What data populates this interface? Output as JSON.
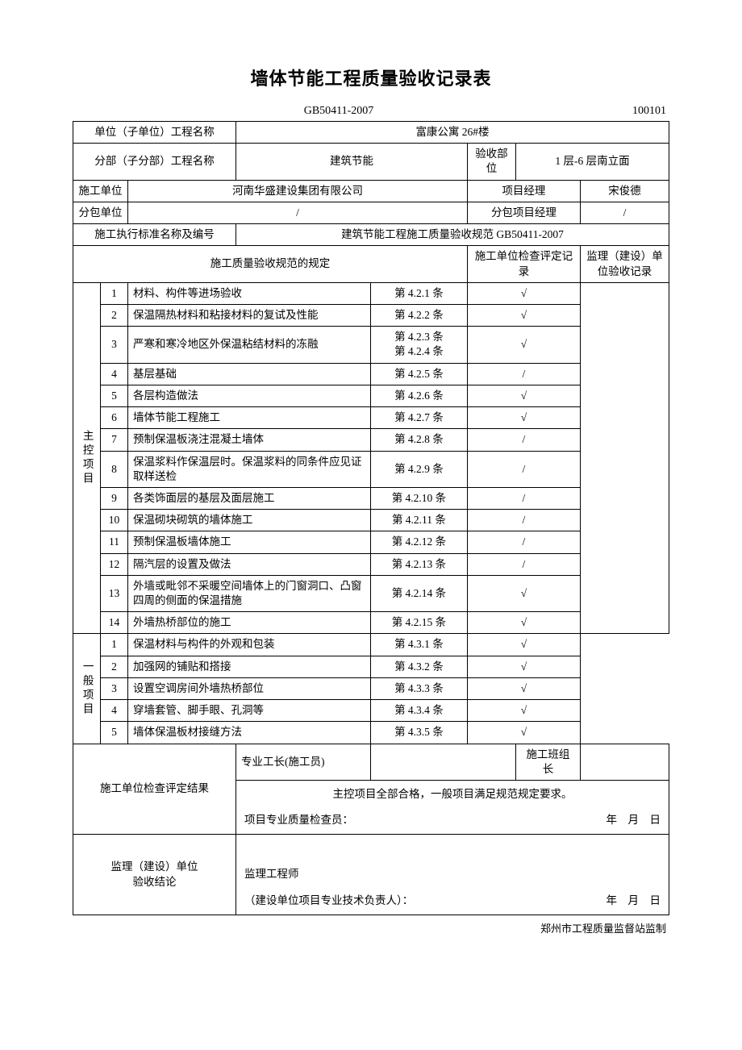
{
  "title": "墙体节能工程质量验收记录表",
  "standard_code": "GB50411-2007",
  "form_no": "100101",
  "header": {
    "row1_label": "单位（子单位）工程名称",
    "row1_value": "富康公寓 26#楼",
    "row2_label": "分部（子分部）工程名称",
    "row2_val1": "建筑节能",
    "row2_label2": "验收部位",
    "row2_val2": "1 层-6 层南立面",
    "row3_label": "施工单位",
    "row3_val": "河南华盛建设集团有限公司",
    "row3_label2": "项目经理",
    "row3_val2": "宋俊德",
    "row4_label": "分包单位",
    "row4_val": "/",
    "row4_label2": "分包项目经理",
    "row4_val2": "/",
    "row5_label": "施工执行标准名称及编号",
    "row5_val": "建筑节能工程施工质量验收规范 GB50411-2007",
    "col_spec": "施工质量验收规范的规定",
    "col_check": "施工单位检查评定记录",
    "col_supervise": "监理（建设）单位验收记录"
  },
  "main_label": "主控项目",
  "general_label": "一般项目",
  "main_items": [
    {
      "n": "1",
      "desc": "材料、构件等进场验收",
      "ref": "第 4.2.1 条",
      "mark": "√"
    },
    {
      "n": "2",
      "desc": "保温隔热材料和粘接材料的复试及性能",
      "ref": "第 4.2.2 条",
      "mark": "√"
    },
    {
      "n": "3",
      "desc": "严寒和寒冷地区外保温粘结材料的冻融",
      "ref": "第 4.2.3 条\n第 4.2.4 条",
      "mark": "√"
    },
    {
      "n": "4",
      "desc": "基层基础",
      "ref": "第 4.2.5 条",
      "mark": "/"
    },
    {
      "n": "5",
      "desc": "各层构造做法",
      "ref": "第 4.2.6 条",
      "mark": "√"
    },
    {
      "n": "6",
      "desc": "墙体节能工程施工",
      "ref": "第 4.2.7 条",
      "mark": "√"
    },
    {
      "n": "7",
      "desc": "预制保温板浇注混凝土墙体",
      "ref": "第 4.2.8 条",
      "mark": "/"
    },
    {
      "n": "8",
      "desc": "保温浆料作保温层时。保温浆料的同条件应见证取样送检",
      "ref": "第 4.2.9 条",
      "mark": "/"
    },
    {
      "n": "9",
      "desc": "各类饰面层的基层及面层施工",
      "ref": "第 4.2.10 条",
      "mark": "/"
    },
    {
      "n": "10",
      "desc": "保温砌块砌筑的墙体施工",
      "ref": "第 4.2.11 条",
      "mark": "/"
    },
    {
      "n": "11",
      "desc": "预制保温板墙体施工",
      "ref": "第 4.2.12 条",
      "mark": "/"
    },
    {
      "n": "12",
      "desc": "隔汽层的设置及做法",
      "ref": "第 4.2.13 条",
      "mark": "/"
    },
    {
      "n": "13",
      "desc": "外墙或毗邻不采暖空间墙体上的门窗洞口、凸窗四周的侧面的保温措施",
      "ref": "第 4.2.14 条",
      "mark": "√"
    },
    {
      "n": "14",
      "desc": "外墙热桥部位的施工",
      "ref": "第 4.2.15 条",
      "mark": "√"
    }
  ],
  "general_items": [
    {
      "n": "1",
      "desc": "保温材料与构件的外观和包装",
      "ref": "第 4.3.1 条",
      "mark": "√"
    },
    {
      "n": "2",
      "desc": "加强网的铺贴和搭接",
      "ref": "第 4.3.2 条",
      "mark": "√"
    },
    {
      "n": "3",
      "desc": "设置空调房间外墙热桥部位",
      "ref": "第 4.3.3 条",
      "mark": "√"
    },
    {
      "n": "4",
      "desc": "穿墙套管、脚手眼、孔洞等",
      "ref": "第 4.3.4 条",
      "mark": "√"
    },
    {
      "n": "5",
      "desc": "墙体保温板材接缝方法",
      "ref": "第 4.3.5 条",
      "mark": "√"
    }
  ],
  "footer": {
    "result_label": "施工单位检查评定结果",
    "foreman_label": "专业工长(施工员)",
    "team_leader_label": "施工班组长",
    "result_text": "主控项目全部合格，一般项目满足规范规定要求。",
    "qc_label": "项目专业质量检查员：",
    "date_label": "年　月　日",
    "supervise_label": "监理（建设）单位\n验收结论",
    "engineer_label": "监理工程师",
    "owner_label": "（建设单位项目专业技术负责人）："
  },
  "footnote": "郑州市工程质量监督站监制"
}
